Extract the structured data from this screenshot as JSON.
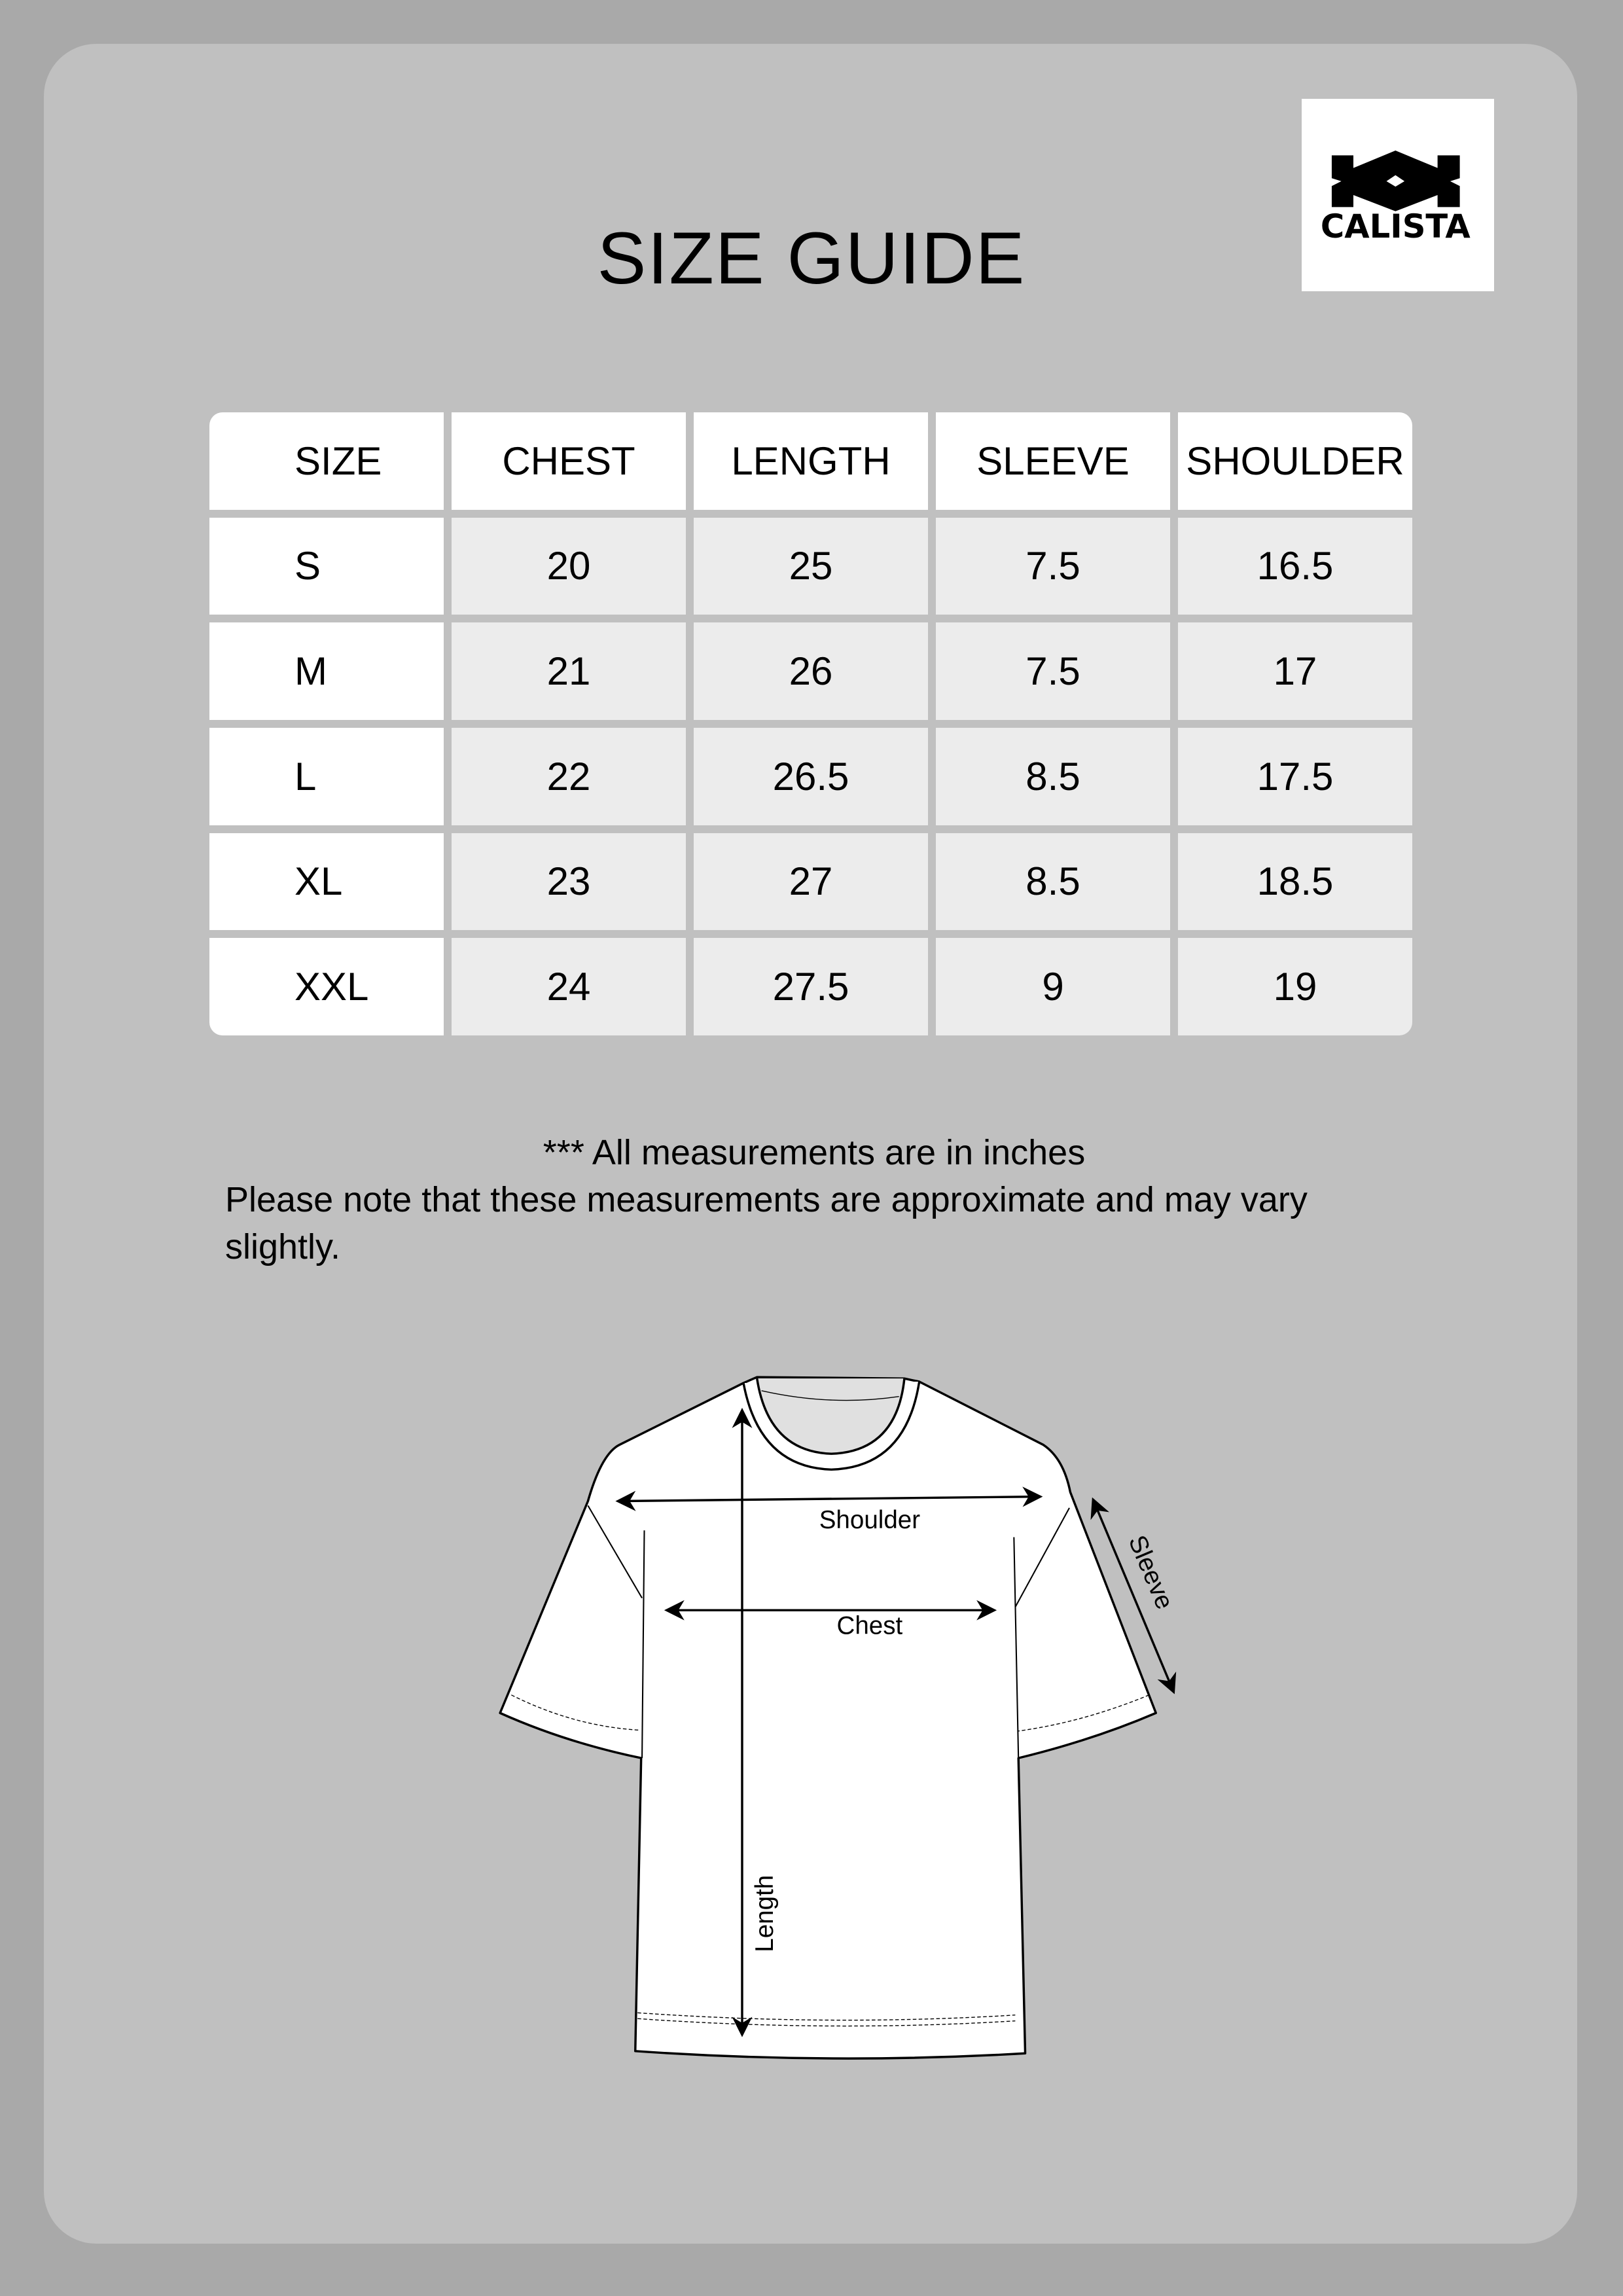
{
  "brand": {
    "name": "CALISTA",
    "logo_icon": "calista-diamond-mark"
  },
  "title": "SIZE GUIDE",
  "table": {
    "headers": [
      "SIZE",
      "CHEST",
      "LENGTH",
      "SLEEVE",
      "SHOULDER"
    ],
    "rows": [
      [
        "S",
        "20",
        "25",
        "7.5",
        "16.5"
      ],
      [
        "M",
        "21",
        "26",
        "7.5",
        "17"
      ],
      [
        "L",
        "22",
        "26.5",
        "8.5",
        "17.5"
      ],
      [
        "XL",
        "23",
        "27",
        "8.5",
        "18.5"
      ],
      [
        "XXL",
        "24",
        "27.5",
        "9",
        "19"
      ]
    ]
  },
  "notes": {
    "line1": "*** All measurements are in inches",
    "line2": "Please note that these measurements are approximate and may vary slightly."
  },
  "diagram": {
    "shoulder": "Shoulder",
    "chest": "Chest",
    "length": "Length",
    "sleeve": "Sleeve"
  },
  "colors": {
    "background": "#a9a9a9",
    "card": "#c0c0c0",
    "cell": "#ececec",
    "header": "#ffffff"
  }
}
